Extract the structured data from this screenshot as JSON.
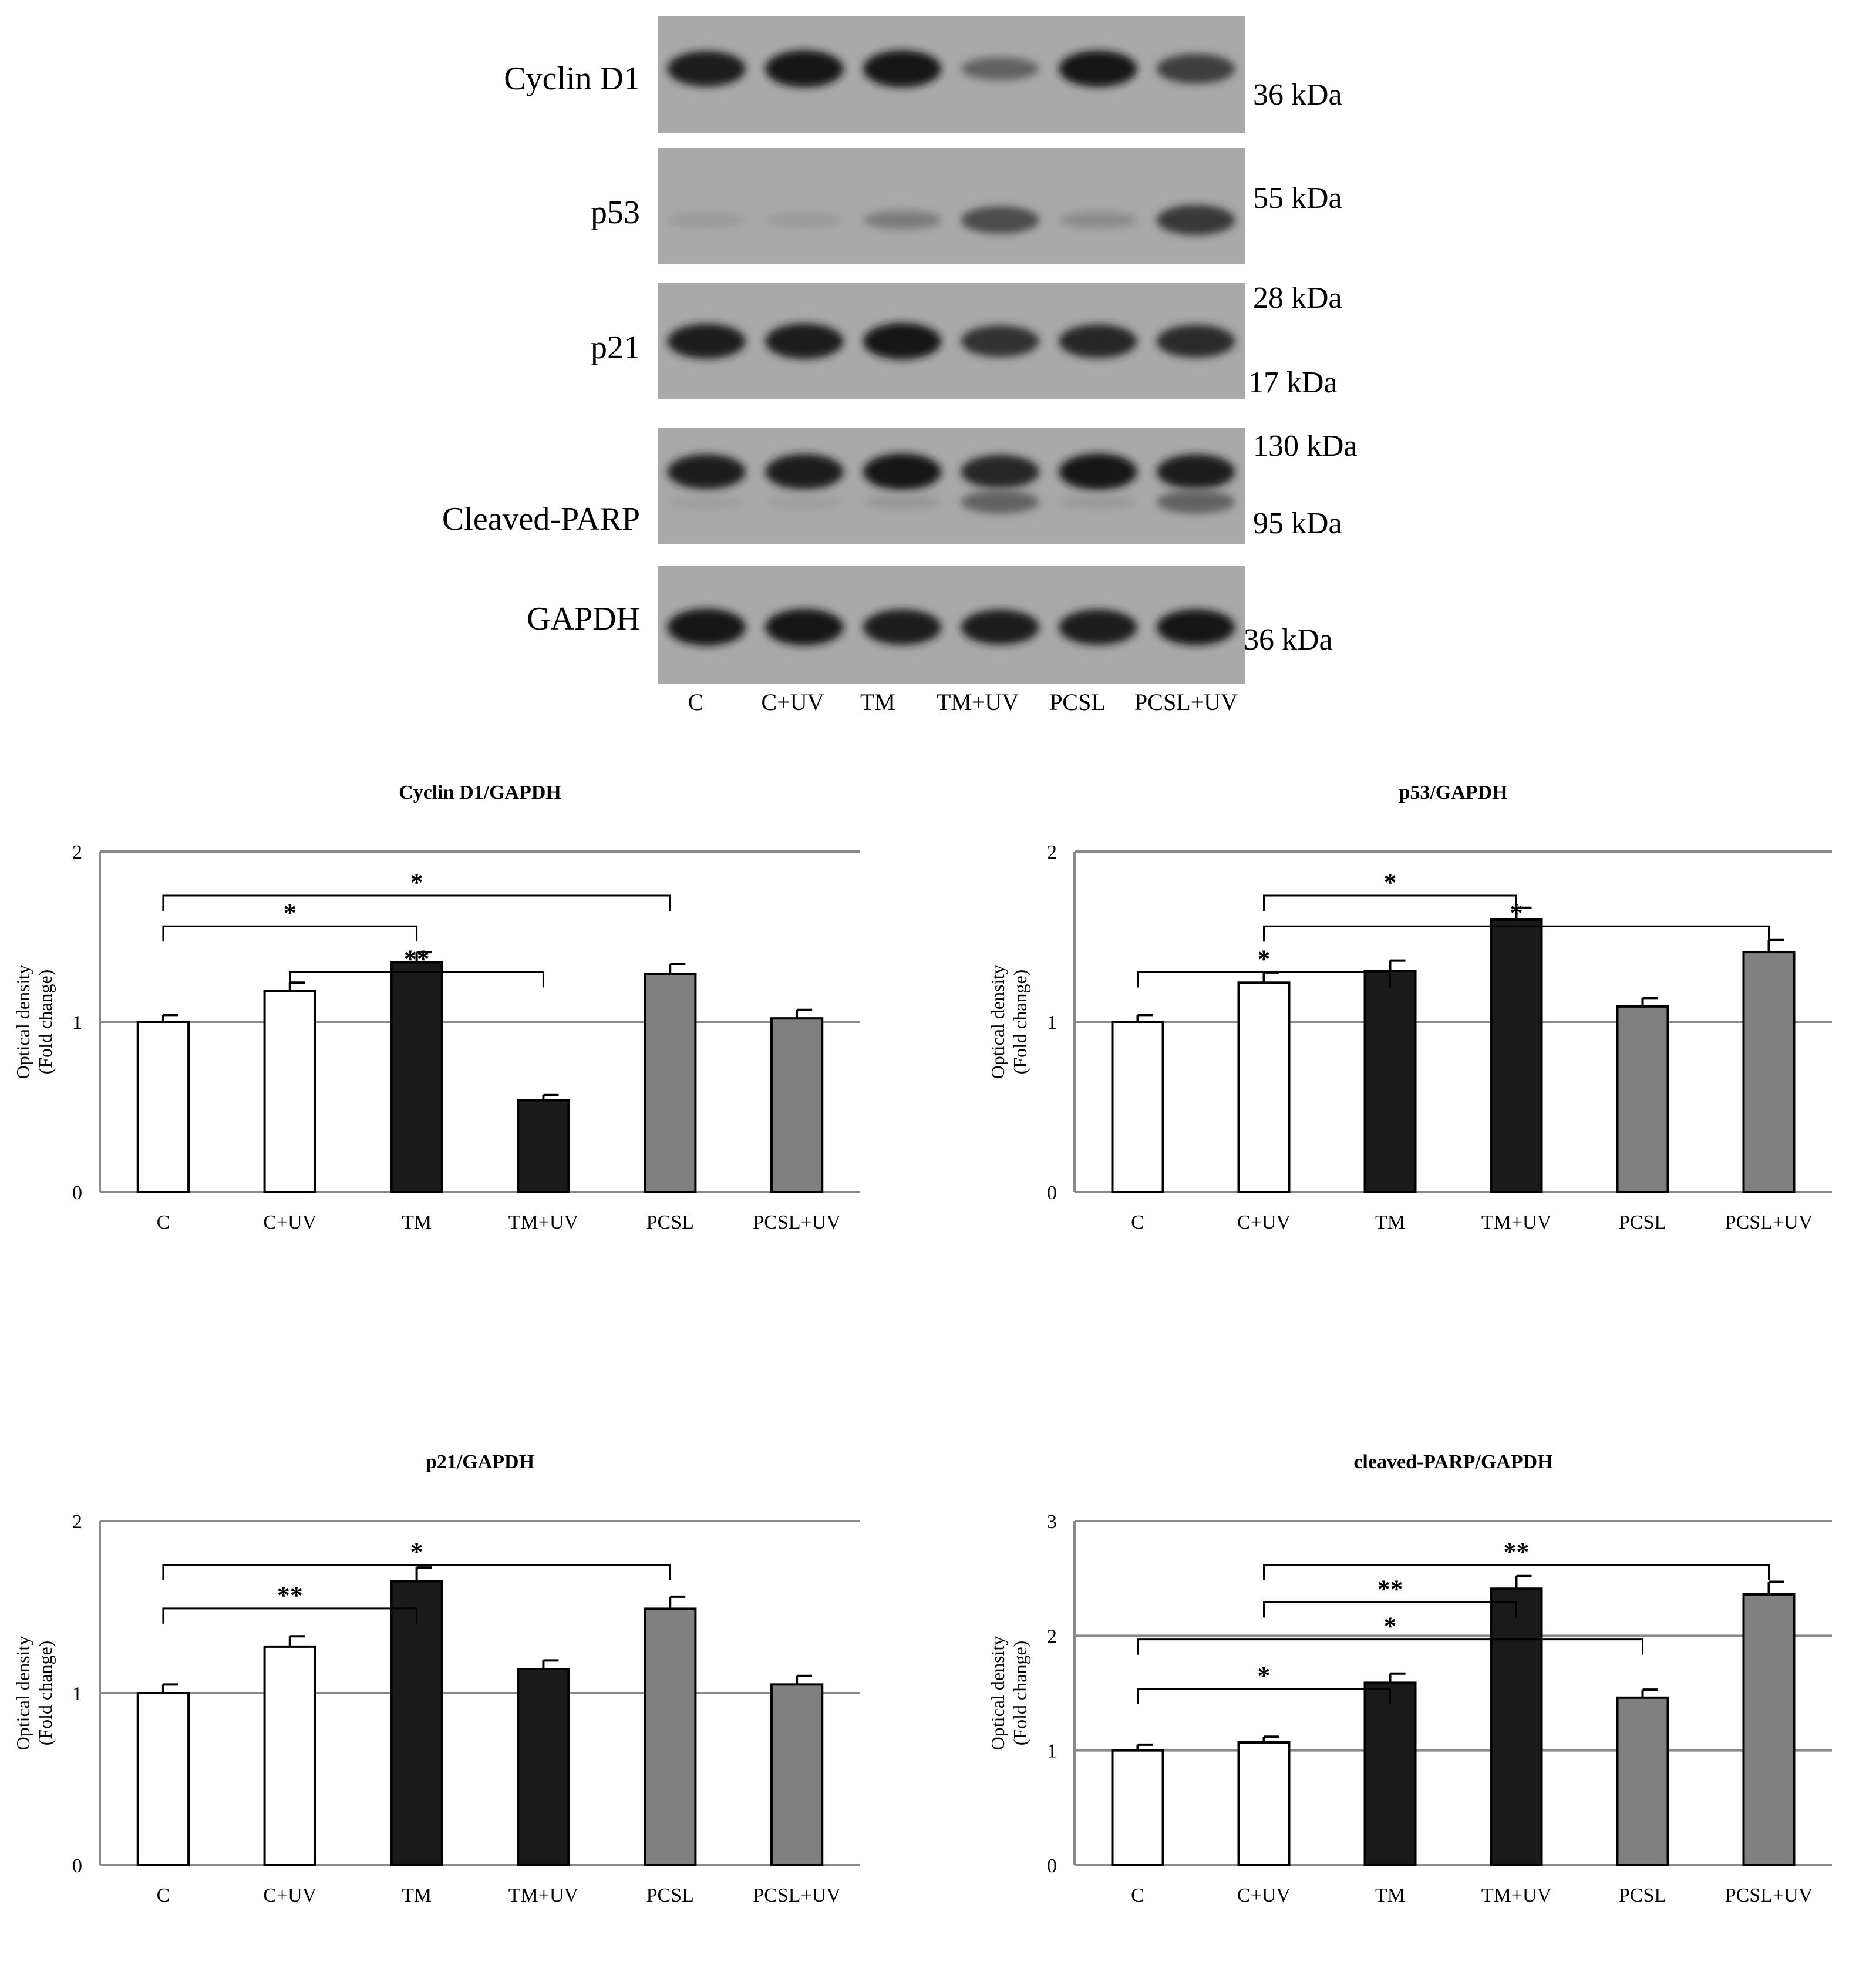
{
  "blot": {
    "lanes": [
      "C",
      "C+UV",
      "TM",
      "TM+UV",
      "PCSL",
      "PCSL+UV"
    ],
    "panels": [
      {
        "name": "Cyclin D1",
        "kda": [
          "36 kDa"
        ],
        "bands": [
          {
            "pos": 0.45,
            "intensity": [
              0.92,
              0.98,
              0.98,
              0.45,
              0.95,
              0.7
            ]
          }
        ]
      },
      {
        "name": "p53",
        "kda": [
          "55 kDa"
        ],
        "bands": [
          {
            "pos": 0.62,
            "intensity": [
              0.08,
              0.08,
              0.28,
              0.6,
              0.18,
              0.72
            ]
          }
        ]
      },
      {
        "name": "p21",
        "kda": [
          "28 kDa",
          "17 kDa"
        ],
        "bands": [
          {
            "pos": 0.5,
            "intensity": [
              0.9,
              0.92,
              0.96,
              0.78,
              0.85,
              0.82
            ]
          }
        ]
      },
      {
        "name": "Cleaved-PARP",
        "kda": [
          "130 kDa",
          "95 kDa"
        ],
        "bands": [
          {
            "pos": 0.38,
            "intensity": [
              0.9,
              0.92,
              0.96,
              0.85,
              0.96,
              0.9
            ]
          },
          {
            "pos": 0.64,
            "intensity": [
              0.05,
              0.05,
              0.1,
              0.45,
              0.08,
              0.45
            ]
          }
        ]
      },
      {
        "name": "GAPDH",
        "kda": [
          "36 kDa"
        ],
        "bands": [
          {
            "pos": 0.52,
            "intensity": [
              0.98,
              0.96,
              0.92,
              0.9,
              0.92,
              0.94
            ]
          }
        ]
      }
    ]
  },
  "chart_data": [
    {
      "type": "bar",
      "title": "Cyclin D1/GAPDH",
      "ylabel": [
        "Optical density",
        "(Fold change)"
      ],
      "categories": [
        "C",
        "C+UV",
        "TM",
        "TM+UV",
        "PCSL",
        "PCSL+UV"
      ],
      "values": [
        1.0,
        1.18,
        1.35,
        0.54,
        1.28,
        1.02
      ],
      "errors": [
        0.04,
        0.05,
        0.06,
        0.03,
        0.06,
        0.05
      ],
      "colors": [
        "#ffffff",
        "#ffffff",
        "#1a1a1a",
        "#1a1a1a",
        "#808080",
        "#808080"
      ],
      "ylim": [
        0,
        2
      ],
      "yticks": [
        0,
        1,
        2
      ],
      "grid": true,
      "significance": [
        {
          "from": 0,
          "to": 2,
          "level": 0.1,
          "label": "*"
        },
        {
          "from": 0,
          "to": 4,
          "level": 0.0,
          "label": "*"
        },
        {
          "from": 1,
          "to": 3,
          "level": 0.25,
          "label": "**"
        }
      ]
    },
    {
      "type": "bar",
      "title": "p53/GAPDH",
      "ylabel": [
        "Optical density",
        "(Fold change)"
      ],
      "categories": [
        "C",
        "C+UV",
        "TM",
        "TM+UV",
        "PCSL",
        "PCSL+UV"
      ],
      "values": [
        1.0,
        1.23,
        1.3,
        1.6,
        1.09,
        1.41
      ],
      "errors": [
        0.04,
        0.06,
        0.06,
        0.07,
        0.05,
        0.07
      ],
      "colors": [
        "#ffffff",
        "#ffffff",
        "#1a1a1a",
        "#1a1a1a",
        "#808080",
        "#808080"
      ],
      "ylim": [
        0,
        2
      ],
      "yticks": [
        0,
        1,
        2
      ],
      "grid": true,
      "significance": [
        {
          "from": 0,
          "to": 2,
          "level": 0.25,
          "label": "*"
        },
        {
          "from": 1,
          "to": 3,
          "level": 0.0,
          "label": "*"
        },
        {
          "from": 1,
          "to": 5,
          "level": 0.1,
          "label": "*"
        }
      ]
    },
    {
      "type": "bar",
      "title": "p21/GAPDH",
      "ylabel": [
        "Optical density",
        "(Fold change)"
      ],
      "categories": [
        "C",
        "C+UV",
        "TM",
        "TM+UV",
        "PCSL",
        "PCSL+UV"
      ],
      "values": [
        1.0,
        1.27,
        1.65,
        1.14,
        1.49,
        1.05
      ],
      "errors": [
        0.05,
        0.06,
        0.08,
        0.05,
        0.07,
        0.05
      ],
      "colors": [
        "#ffffff",
        "#ffffff",
        "#1a1a1a",
        "#1a1a1a",
        "#808080",
        "#808080"
      ],
      "ylim": [
        0,
        2
      ],
      "yticks": [
        0,
        1,
        2
      ],
      "grid": true,
      "significance": [
        {
          "from": 0,
          "to": 2,
          "level": 0.14,
          "label": "**"
        },
        {
          "from": 0,
          "to": 4,
          "level": 0.0,
          "label": "*"
        }
      ]
    },
    {
      "type": "bar",
      "title": "cleaved-PARP/GAPDH",
      "ylabel": [
        "Optical density",
        "(Fold change)"
      ],
      "categories": [
        "C",
        "C+UV",
        "TM",
        "TM+UV",
        "PCSL",
        "PCSL+UV"
      ],
      "values": [
        1.0,
        1.07,
        1.59,
        2.41,
        1.46,
        2.36
      ],
      "errors": [
        0.05,
        0.05,
        0.08,
        0.11,
        0.07,
        0.11
      ],
      "colors": [
        "#ffffff",
        "#ffffff",
        "#1a1a1a",
        "#1a1a1a",
        "#808080",
        "#808080"
      ],
      "ylim": [
        0,
        3
      ],
      "yticks": [
        0,
        1,
        2,
        3
      ],
      "grid": true,
      "significance": [
        {
          "from": 0,
          "to": 2,
          "level": 0.4,
          "label": "*"
        },
        {
          "from": 0,
          "to": 4,
          "level": 0.24,
          "label": "*"
        },
        {
          "from": 1,
          "to": 3,
          "level": 0.12,
          "label": "**"
        },
        {
          "from": 1,
          "to": 5,
          "level": 0.0,
          "label": "**"
        }
      ]
    }
  ]
}
